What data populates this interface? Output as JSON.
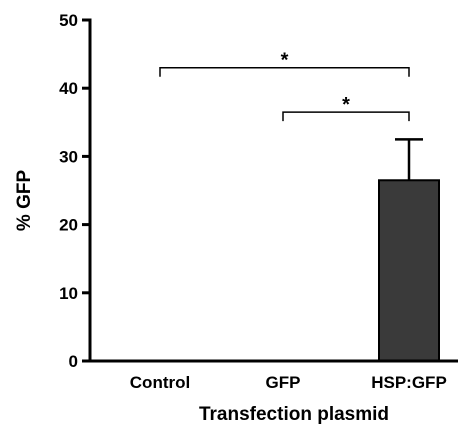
{
  "chart_data": {
    "type": "bar",
    "title": "",
    "xlabel": "Transfection plasmid",
    "ylabel": "% GFP",
    "ylim": [
      0,
      50
    ],
    "yticks": [
      0,
      10,
      20,
      30,
      40,
      50
    ],
    "categories": [
      "Control",
      "GFP",
      "HSP:GFP"
    ],
    "values": [
      0,
      0,
      26.5
    ],
    "error_upper": [
      0,
      0,
      6
    ],
    "bar_color": "#3a3a3a",
    "grid": false,
    "legend": "none",
    "significance": [
      {
        "from": "Control",
        "to": "HSP:GFP",
        "level": 43,
        "label": "*"
      },
      {
        "from": "GFP",
        "to": "HSP:GFP",
        "level": 36.5,
        "label": "*"
      }
    ]
  }
}
